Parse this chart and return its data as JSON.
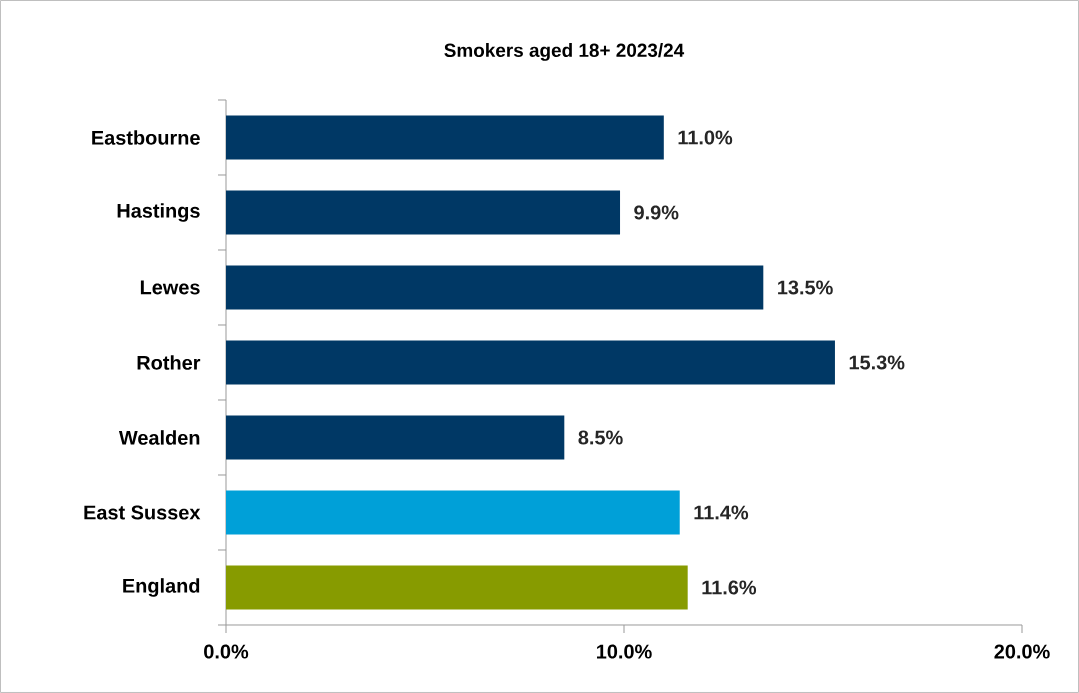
{
  "chart_data": {
    "type": "bar",
    "orientation": "horizontal",
    "title": "Smokers aged 18+ 2023/24",
    "categories": [
      "Eastbourne",
      "Hastings",
      "Lewes",
      "Rother",
      "Wealden",
      "East Sussex",
      "England"
    ],
    "values": [
      11.0,
      9.9,
      13.5,
      15.3,
      8.5,
      11.4,
      11.6
    ],
    "colors": [
      "#003865",
      "#003865",
      "#003865",
      "#003865",
      "#003865",
      "#00a0d8",
      "#879b00"
    ],
    "value_labels": [
      "11.0%",
      "9.9%",
      "13.5%",
      "15.3%",
      "8.5%",
      "11.4%",
      "11.6%"
    ],
    "xlim": [
      0,
      20
    ],
    "xticks": [
      {
        "value": 0,
        "label": "0.0%"
      },
      {
        "value": 10,
        "label": "10.0%"
      },
      {
        "value": 20,
        "label": "20.0%"
      }
    ]
  }
}
